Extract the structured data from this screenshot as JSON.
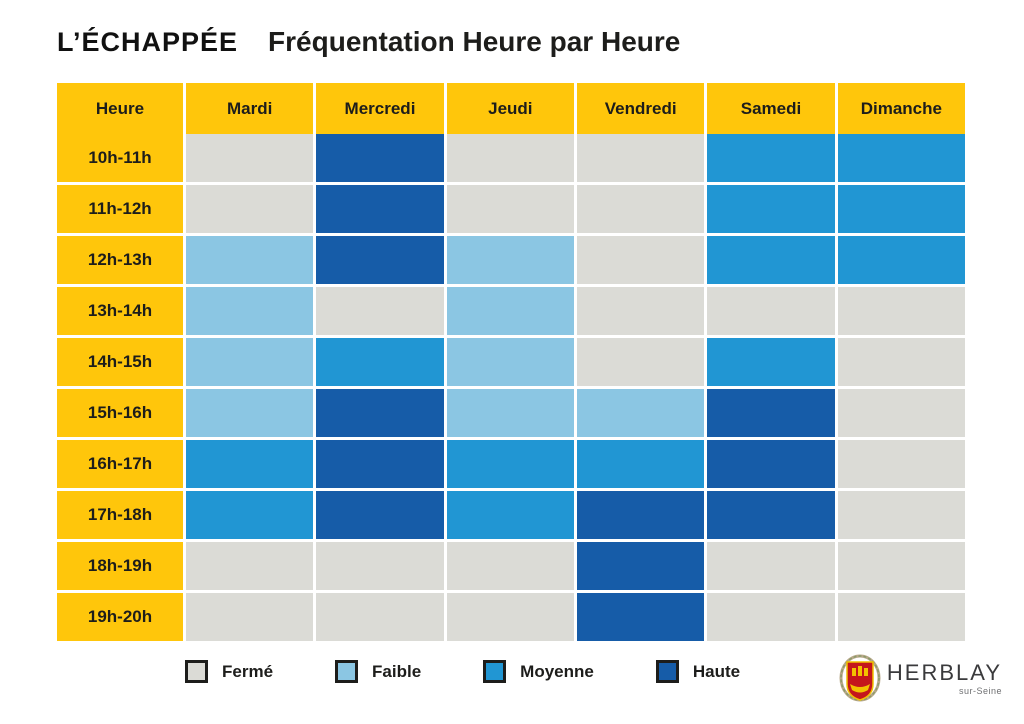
{
  "header": {
    "logo": "L’ÉCHAPPÉE",
    "title": "Fréquentation Heure par Heure"
  },
  "colors": {
    "ferme": "#dbdbd6",
    "faible": "#8bc6e3",
    "moyenne": "#2196d3",
    "haute": "#165ca8",
    "header_yellow": "#ffc60b",
    "text_dark": "#1d1d1b"
  },
  "chart_data": {
    "type": "heatmap",
    "title": "Fréquentation Heure par Heure",
    "columns": [
      "Heure",
      "Mardi",
      "Mercredi",
      "Jeudi",
      "Vendredi",
      "Samedi",
      "Dimanche"
    ],
    "rows": [
      "10h-11h",
      "11h-12h",
      "12h-13h",
      "13h-14h",
      "14h-15h",
      "15h-16h",
      "16h-17h",
      "17h-18h",
      "18h-19h",
      "19h-20h"
    ],
    "level_names": {
      "ferme": "Fermé",
      "faible": "Faible",
      "moyenne": "Moyenne",
      "haute": "Haute"
    },
    "values": [
      [
        "ferme",
        "haute",
        "ferme",
        "ferme",
        "moyenne",
        "moyenne"
      ],
      [
        "ferme",
        "haute",
        "ferme",
        "ferme",
        "moyenne",
        "moyenne"
      ],
      [
        "faible",
        "haute",
        "faible",
        "ferme",
        "moyenne",
        "moyenne"
      ],
      [
        "faible",
        "ferme",
        "faible",
        "ferme",
        "ferme",
        "ferme"
      ],
      [
        "faible",
        "moyenne",
        "faible",
        "ferme",
        "moyenne",
        "ferme"
      ],
      [
        "faible",
        "haute",
        "faible",
        "faible",
        "haute",
        "ferme"
      ],
      [
        "moyenne",
        "haute",
        "moyenne",
        "moyenne",
        "haute",
        "ferme"
      ],
      [
        "moyenne",
        "haute",
        "moyenne",
        "haute",
        "haute",
        "ferme"
      ],
      [
        "ferme",
        "ferme",
        "ferme",
        "haute",
        "ferme",
        "ferme"
      ],
      [
        "ferme",
        "ferme",
        "ferme",
        "haute",
        "ferme",
        "ferme"
      ]
    ],
    "legend_position": "bottom",
    "grid": false
  },
  "legend": {
    "items": [
      {
        "label": "Fermé",
        "level": "ferme"
      },
      {
        "label": "Faible",
        "level": "faible"
      },
      {
        "label": "Moyenne",
        "level": "moyenne"
      },
      {
        "label": "Haute",
        "level": "haute"
      }
    ]
  },
  "footer_logo": {
    "name": "HERBLAY",
    "subtitle": "sur-Seine"
  }
}
